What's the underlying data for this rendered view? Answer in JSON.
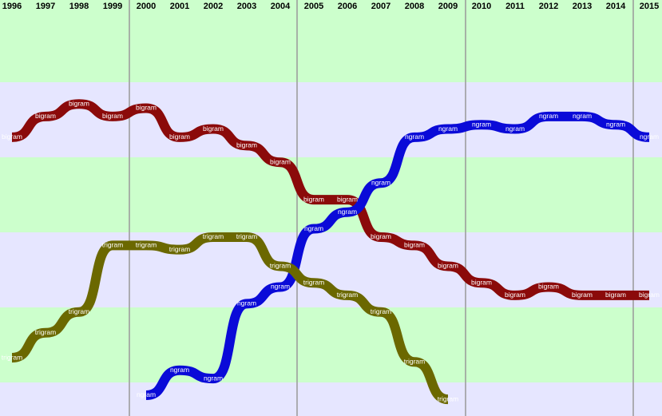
{
  "chart_data": {
    "type": "line",
    "categories": [
      "1996",
      "1997",
      "1998",
      "1999",
      "2000",
      "2001",
      "2002",
      "2003",
      "2004",
      "2005",
      "2006",
      "2007",
      "2008",
      "2009",
      "2010",
      "2011",
      "2012",
      "2013",
      "2014",
      "2015"
    ],
    "ylim": [
      0,
      100
    ],
    "series": [
      {
        "name": "bigram",
        "color": "#8b0a0a",
        "values": [
          67,
          72,
          75,
          72,
          74,
          67,
          69,
          65,
          61,
          52,
          52,
          43,
          41,
          36,
          32,
          29,
          31,
          29,
          29,
          29
        ]
      },
      {
        "name": "ngram",
        "color": "#0a0ad8",
        "values": [
          null,
          null,
          null,
          null,
          5,
          11,
          9,
          27,
          31,
          45,
          49,
          56,
          67,
          69,
          70,
          69,
          72,
          72,
          70,
          67
        ]
      },
      {
        "name": "trigram",
        "color": "#6b6800",
        "values": [
          14,
          20,
          25,
          41,
          41,
          40,
          43,
          43,
          36,
          32,
          29,
          25,
          13,
          4,
          null,
          null,
          null,
          null,
          null,
          null
        ]
      }
    ]
  }
}
